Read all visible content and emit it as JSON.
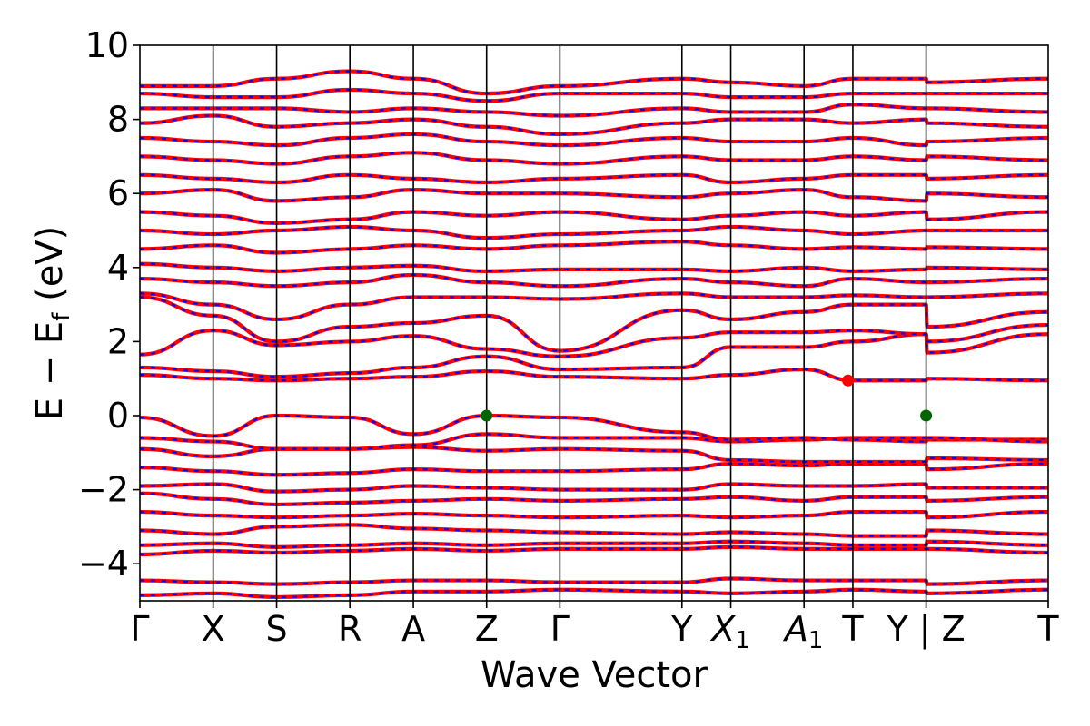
{
  "chart_data": {
    "type": "line",
    "title": "",
    "xlabel": "Wave Vector",
    "ylabel": {
      "main": "E − E",
      "sub": "f",
      "unit": " (eV)"
    },
    "ylim": [
      -5,
      10
    ],
    "yticks": [
      {
        "value": -4,
        "label": "−4"
      },
      {
        "value": -2,
        "label": "−2"
      },
      {
        "value": 0,
        "label": "0"
      },
      {
        "value": 2,
        "label": "2"
      },
      {
        "value": 4,
        "label": "4"
      },
      {
        "value": 6,
        "label": "6"
      },
      {
        "value": 8,
        "label": "8"
      },
      {
        "value": 10,
        "label": "10"
      }
    ],
    "xlim": [
      0,
      12.6
    ],
    "kpoints": [
      {
        "x": 0.0,
        "label": "Γ",
        "sub": ""
      },
      {
        "x": 0.75,
        "label": "X",
        "sub": ""
      },
      {
        "x": 1.4,
        "label": "S",
        "sub": ""
      },
      {
        "x": 2.15,
        "label": "R",
        "sub": ""
      },
      {
        "x": 2.8,
        "label": "A",
        "sub": ""
      },
      {
        "x": 3.55,
        "label": "Z",
        "sub": ""
      },
      {
        "x": 4.3,
        "label": "Γ",
        "sub": ""
      },
      {
        "x": 5.55,
        "label": "Y",
        "sub": ""
      },
      {
        "x": 6.05,
        "label": "X",
        "sub": "1"
      },
      {
        "x": 6.8,
        "label": "A",
        "sub": "1"
      },
      {
        "x": 7.3,
        "label": "T",
        "sub": ""
      },
      {
        "x": 8.05,
        "label": "Y | Z",
        "sub": ""
      },
      {
        "x": 9.3,
        "label": "T",
        "sub": ""
      }
    ],
    "xmax_point": 9.3,
    "series_styles": [
      {
        "name": "",
        "color": "#ff0000",
        "style": "solid"
      },
      {
        "name": "",
        "color": "#0000ff",
        "style": "dashed"
      }
    ],
    "markers": [
      {
        "x": 3.55,
        "y": 0.0,
        "color": "#006400",
        "meaning": "VBM"
      },
      {
        "x": 8.05,
        "y": 0.0,
        "color": "#006400",
        "meaning": "VBM"
      },
      {
        "x": 7.25,
        "y": 0.95,
        "color": "#ff0000",
        "meaning": "CBM"
      }
    ],
    "grid": false,
    "legend": "none",
    "bands": [
      [
        -4.85,
        -4.8,
        -4.9,
        -4.85,
        -4.75,
        -4.75,
        -4.7,
        -4.75,
        -4.8,
        -4.75,
        -4.7,
        -4.75,
        -4.8,
        -4.7
      ],
      [
        -4.45,
        -4.5,
        -4.55,
        -4.5,
        -4.45,
        -4.45,
        -4.5,
        -4.5,
        -4.4,
        -4.45,
        -4.45,
        -4.45,
        -4.55,
        -4.45
      ],
      [
        -3.75,
        -3.65,
        -3.7,
        -3.65,
        -3.6,
        -3.65,
        -3.6,
        -3.6,
        -3.55,
        -3.6,
        -3.6,
        -3.6,
        -3.6,
        -3.7
      ],
      [
        -3.5,
        -3.45,
        -3.55,
        -3.5,
        -3.45,
        -3.5,
        -3.45,
        -3.45,
        -3.4,
        -3.45,
        -3.5,
        -3.5,
        -3.4,
        -3.5
      ],
      [
        -3.1,
        -3.2,
        -3.0,
        -2.95,
        -3.05,
        -3.1,
        -3.15,
        -3.2,
        -3.15,
        -3.2,
        -3.25,
        -3.25,
        -3.1,
        -3.2
      ],
      [
        -2.6,
        -2.7,
        -2.75,
        -2.7,
        -2.65,
        -2.7,
        -2.75,
        -2.7,
        -2.75,
        -2.7,
        -2.6,
        -2.6,
        -2.75,
        -2.6
      ],
      [
        -2.1,
        -2.25,
        -2.4,
        -2.35,
        -2.3,
        -2.25,
        -2.3,
        -2.25,
        -2.2,
        -2.3,
        -2.2,
        -2.2,
        -2.3,
        -2.2
      ],
      [
        -1.9,
        -1.85,
        -2.05,
        -2.0,
        -1.9,
        -1.95,
        -2.0,
        -2.0,
        -1.85,
        -1.9,
        -1.9,
        -1.85,
        -1.95,
        -1.95
      ],
      [
        -1.4,
        -1.5,
        -1.6,
        -1.55,
        -1.45,
        -1.5,
        -1.5,
        -1.45,
        -1.3,
        -1.35,
        -1.3,
        -1.3,
        -1.45,
        -1.3
      ],
      [
        -0.9,
        -1.1,
        -0.9,
        -0.9,
        -0.85,
        -0.95,
        -0.9,
        -0.95,
        -1.2,
        -1.25,
        -1.25,
        -1.25,
        -1.15,
        -1.2
      ],
      [
        -0.6,
        -0.7,
        -0.9,
        -0.9,
        -0.8,
        -0.5,
        -0.6,
        -0.6,
        -0.7,
        -0.65,
        -0.6,
        -0.6,
        -0.65,
        -0.65
      ],
      [
        -0.05,
        -0.55,
        0.0,
        -0.05,
        -0.5,
        0.0,
        -0.05,
        -0.45,
        -0.65,
        -0.6,
        -0.65,
        -0.7,
        -0.6,
        -0.7
      ],
      [
        1.1,
        1.0,
        0.95,
        1.0,
        1.05,
        1.2,
        1.05,
        1.0,
        1.1,
        1.25,
        0.95,
        0.95,
        1.0,
        0.95
      ],
      [
        1.3,
        1.2,
        1.05,
        1.15,
        1.3,
        1.6,
        1.25,
        1.3,
        1.85,
        1.85,
        2.0,
        2.2,
        1.7,
        2.2
      ],
      [
        1.65,
        2.3,
        1.9,
        2.0,
        2.15,
        1.8,
        1.6,
        2.1,
        2.25,
        2.25,
        2.3,
        2.2,
        2.0,
        2.45
      ],
      [
        3.2,
        2.7,
        2.0,
        2.4,
        2.5,
        2.7,
        1.75,
        2.85,
        2.6,
        2.8,
        3.0,
        3.0,
        2.4,
        2.8
      ],
      [
        3.3,
        3.0,
        2.6,
        3.0,
        3.2,
        3.2,
        3.15,
        3.3,
        3.2,
        3.2,
        3.25,
        3.2,
        3.2,
        3.3
      ],
      [
        3.7,
        3.6,
        3.5,
        3.6,
        3.8,
        3.6,
        3.5,
        3.7,
        3.6,
        3.5,
        3.7,
        3.6,
        3.6,
        3.7
      ],
      [
        4.1,
        4.0,
        3.9,
        4.0,
        4.05,
        3.9,
        3.95,
        3.95,
        3.9,
        4.0,
        3.9,
        3.95,
        4.0,
        3.95
      ],
      [
        4.5,
        4.6,
        4.4,
        4.5,
        4.6,
        4.5,
        4.6,
        4.7,
        4.6,
        4.5,
        4.55,
        4.5,
        4.55,
        4.5
      ],
      [
        5.0,
        4.9,
        5.0,
        5.1,
        5.0,
        4.8,
        4.9,
        5.0,
        5.1,
        5.0,
        4.9,
        5.0,
        5.0,
        5.0
      ],
      [
        5.5,
        5.4,
        5.2,
        5.3,
        5.5,
        5.4,
        5.5,
        5.3,
        5.4,
        5.5,
        5.4,
        5.5,
        5.3,
        5.5
      ],
      [
        6.0,
        6.1,
        5.8,
        5.9,
        6.1,
        6.0,
        6.0,
        5.9,
        6.0,
        6.1,
        5.9,
        5.8,
        6.0,
        5.9
      ],
      [
        6.5,
        6.4,
        6.3,
        6.5,
        6.4,
        6.3,
        6.4,
        6.5,
        6.3,
        6.4,
        6.5,
        6.5,
        6.4,
        6.5
      ],
      [
        7.0,
        6.9,
        6.8,
        7.0,
        7.1,
        6.9,
        6.8,
        7.0,
        6.9,
        6.9,
        7.0,
        6.9,
        7.0,
        6.9
      ],
      [
        7.5,
        7.4,
        7.3,
        7.5,
        7.6,
        7.4,
        7.3,
        7.5,
        7.4,
        7.4,
        7.5,
        7.3,
        7.4,
        7.5
      ],
      [
        7.9,
        8.1,
        7.8,
        7.9,
        8.0,
        7.8,
        7.6,
        7.9,
        8.0,
        8.0,
        7.9,
        8.0,
        7.9,
        7.8
      ],
      [
        8.3,
        8.3,
        8.3,
        8.2,
        8.3,
        8.2,
        8.1,
        8.3,
        8.2,
        8.2,
        8.4,
        8.3,
        8.3,
        8.2
      ],
      [
        8.7,
        8.6,
        8.6,
        8.8,
        8.7,
        8.5,
        8.7,
        8.7,
        8.6,
        8.6,
        8.7,
        8.7,
        8.7,
        8.7
      ],
      [
        8.9,
        8.9,
        9.1,
        9.3,
        9.1,
        8.7,
        8.9,
        9.1,
        9.0,
        8.9,
        9.1,
        9.1,
        9.0,
        9.1
      ]
    ],
    "band_x": [
      0.0,
      0.75,
      1.4,
      2.15,
      2.8,
      3.55,
      4.3,
      5.55,
      6.05,
      6.8,
      7.3,
      8.05,
      8.06,
      9.3
    ]
  }
}
